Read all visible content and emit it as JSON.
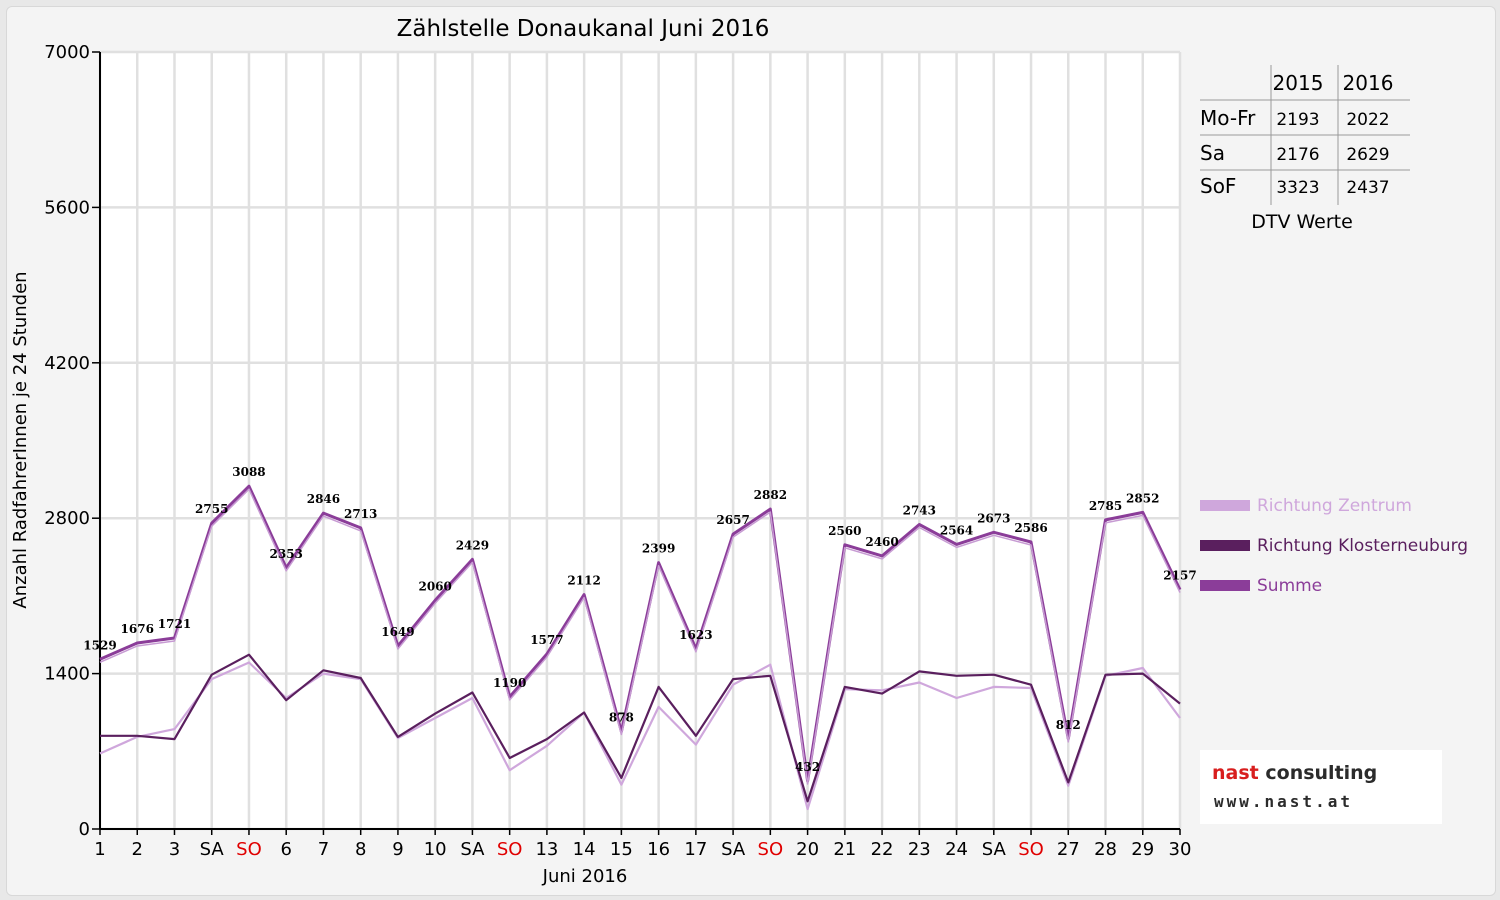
{
  "chart_data": {
    "type": "line",
    "title": "Zählstelle Donaukanal Juni 2016",
    "xlabel": "Juni 2016",
    "ylabel": "Anzahl RadfahrerInnen je 24 Stunden",
    "ylim": [
      0,
      7000
    ],
    "yticks": [
      "0",
      "1400",
      "2800",
      "4200",
      "5600",
      "7000"
    ],
    "grid": true,
    "legend_position": "right",
    "categories": [
      "1",
      "2",
      "3",
      "SA",
      "SO",
      "6",
      "7",
      "8",
      "9",
      "10",
      "SA",
      "SO",
      "13",
      "14",
      "15",
      "16",
      "17",
      "SA",
      "SO",
      "20",
      "21",
      "22",
      "23",
      "24",
      "SA",
      "SO",
      "27",
      "28",
      "29",
      "30"
    ],
    "weekend_colors": [
      "#000000",
      "#000000",
      "#000000",
      "#000000",
      "#e00000",
      "#000000",
      "#000000",
      "#000000",
      "#000000",
      "#000000",
      "#000000",
      "#e00000",
      "#000000",
      "#000000",
      "#000000",
      "#000000",
      "#000000",
      "#000000",
      "#e00000",
      "#000000",
      "#000000",
      "#000000",
      "#000000",
      "#000000",
      "#000000",
      "#e00000",
      "#000000",
      "#000000",
      "#000000",
      "#000000"
    ],
    "series": [
      {
        "name": "Richtung Zentrum",
        "color": "#cfa7dc",
        "values": [
          680,
          830,
          900,
          1350,
          1500,
          1180,
          1400,
          1350,
          820,
          1000,
          1180,
          530,
          750,
          1050,
          400,
          1100,
          760,
          1300,
          1480,
          180,
          1260,
          1250,
          1320,
          1180,
          1280,
          1270,
          390,
          1380,
          1450,
          1000
        ]
      },
      {
        "name": "Richtung Klosterneuburg",
        "color": "#5a1f5e",
        "values": [
          840,
          840,
          810,
          1390,
          1570,
          1160,
          1430,
          1360,
          830,
          1040,
          1230,
          640,
          810,
          1050,
          460,
          1280,
          840,
          1350,
          1380,
          250,
          1280,
          1220,
          1420,
          1380,
          1390,
          1300,
          420,
          1390,
          1400,
          1130
        ]
      },
      {
        "name": "Summe",
        "color": "#8b3d99",
        "values": [
          1529,
          1676,
          1721,
          2755,
          3088,
          2353,
          2846,
          2713,
          1649,
          2060,
          2429,
          1190,
          1577,
          2112,
          878,
          2399,
          1623,
          2657,
          2882,
          432,
          2560,
          2460,
          2743,
          2564,
          2673,
          2586,
          812,
          2785,
          2852,
          2157
        ],
        "labels": [
          "1529",
          "1676",
          "1721",
          "2755",
          "3088",
          "2353",
          "2846",
          "2713",
          "1649",
          "2060",
          "2429",
          "1190",
          "1577",
          "2112",
          "878",
          "2399",
          "1623",
          "2657",
          "2882",
          "432",
          "2560",
          "2460",
          "2743",
          "2564",
          "2673",
          "2586",
          "812",
          "2785",
          "2852",
          "2157"
        ]
      }
    ]
  },
  "dtv_table": {
    "columns": [
      "",
      "2015",
      "2016"
    ],
    "rows": [
      {
        "label": "Mo-Fr",
        "v2015": "2193",
        "v2016": "2022"
      },
      {
        "label": "Sa",
        "v2015": "2176",
        "v2016": "2629"
      },
      {
        "label": "SoF",
        "v2015": "3323",
        "v2016": "2437"
      }
    ],
    "caption": "DTV Werte"
  },
  "logo": {
    "name_part1": "nast",
    "name_part2": "consulting",
    "website": "www.nast.at",
    "accent_color": "#d81e1e"
  }
}
